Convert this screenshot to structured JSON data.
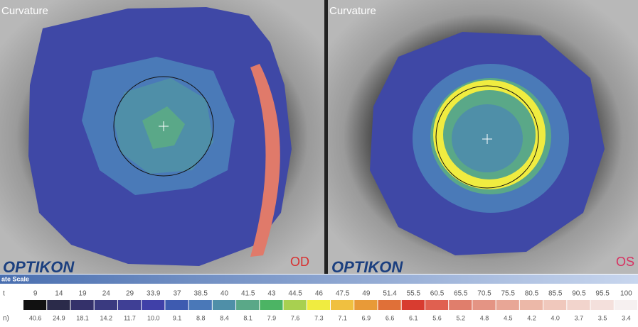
{
  "panels": [
    {
      "title": "Curvature",
      "eye": "OD",
      "logo": "OPTIKON"
    },
    {
      "title": "Curvature",
      "eye": "OS",
      "logo": "OPTIKON"
    }
  ],
  "scale": {
    "title": "ate Scale",
    "row1_label": "t",
    "row1": [
      "9",
      "14",
      "19",
      "24",
      "29",
      "33.9",
      "37",
      "38.5",
      "40",
      "41.5",
      "43",
      "44.5",
      "46",
      "47.5",
      "49",
      "51.4",
      "55.5",
      "60.5",
      "65.5",
      "70.5",
      "75.5",
      "80.5",
      "85.5",
      "90.5",
      "95.5",
      "100"
    ],
    "row2_label": "n)",
    "row2": [
      "40.6",
      "24.9",
      "18.1",
      "14.2",
      "11.7",
      "10.0",
      "9.1",
      "8.8",
      "8.4",
      "8.1",
      "7.9",
      "7.6",
      "7.3",
      "7.1",
      "6.9",
      "6.6",
      "6.1",
      "5.6",
      "5.2",
      "4.8",
      "4.5",
      "4.2",
      "4.0",
      "3.7",
      "3.5",
      "3.4"
    ],
    "colors": [
      "#111111",
      "#2b2b4a",
      "#34316a",
      "#3a3a80",
      "#3f3f95",
      "#4040a8",
      "#3e5bb0",
      "#4a78b8",
      "#4f8fa8",
      "#5aa888",
      "#4cb464",
      "#a8d050",
      "#f0ec40",
      "#f0c040",
      "#e89a38",
      "#e07038",
      "#d83c30",
      "#e06050",
      "#e07e6c",
      "#e49484",
      "#e8a696",
      "#ecb8a8",
      "#f0c8bc",
      "#f2d4cc",
      "#f4e0dc",
      "#f6f0f0"
    ]
  }
}
